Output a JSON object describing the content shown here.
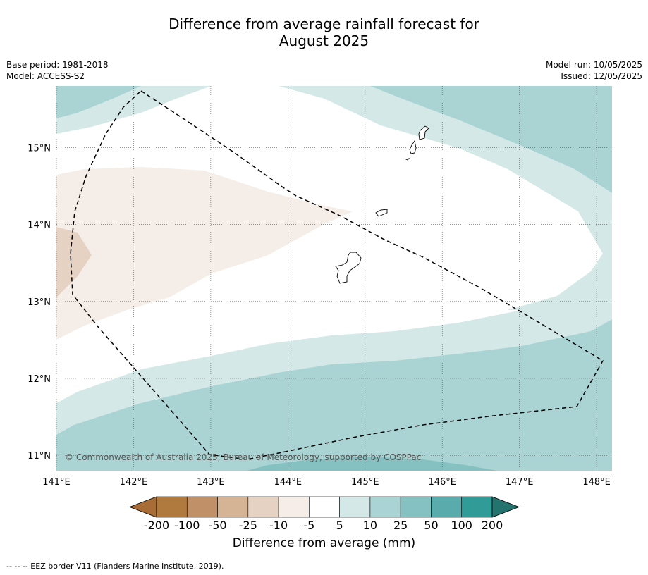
{
  "title_line1": "Difference from average rainfall forecast for",
  "title_line2": "August 2025",
  "meta": {
    "base_period": "Base period: 1981-2018",
    "model": "Model: ACCESS-S2",
    "model_run": "Model run: 10/05/2025",
    "issued": "Issued: 12/05/2025"
  },
  "map": {
    "lon_range": [
      141.0,
      148.2
    ],
    "lat_range": [
      10.8,
      15.8
    ],
    "lon_ticks": [
      "141°E",
      "142°E",
      "143°E",
      "144°E",
      "145°E",
      "146°E",
      "147°E",
      "148°E"
    ],
    "lat_ticks": [
      "15°N",
      "14°N",
      "13°N",
      "12°N",
      "11°N"
    ],
    "gridlines": true,
    "copyright": "© Commonwealth of Australia 2025, Bureau of Meteorology, supported by COSPPac"
  },
  "legend": {
    "colors": [
      "#a86c36",
      "#b0793e",
      "#c09168",
      "#d4b494",
      "#e6d2c2",
      "#f5ede7",
      "#ffffff",
      "#d4e8e7",
      "#aad4d4",
      "#85c1c1",
      "#5aacac",
      "#319b98",
      "#25736f"
    ],
    "labels": [
      "-200",
      "-100",
      "-50",
      "-25",
      "-10",
      "-5",
      "5",
      "10",
      "25",
      "50",
      "100",
      "200"
    ],
    "title": "Difference from average (mm)"
  },
  "footer": "-- -- -- EEZ border V11 (Flanders Marine Institute, 2019)."
}
